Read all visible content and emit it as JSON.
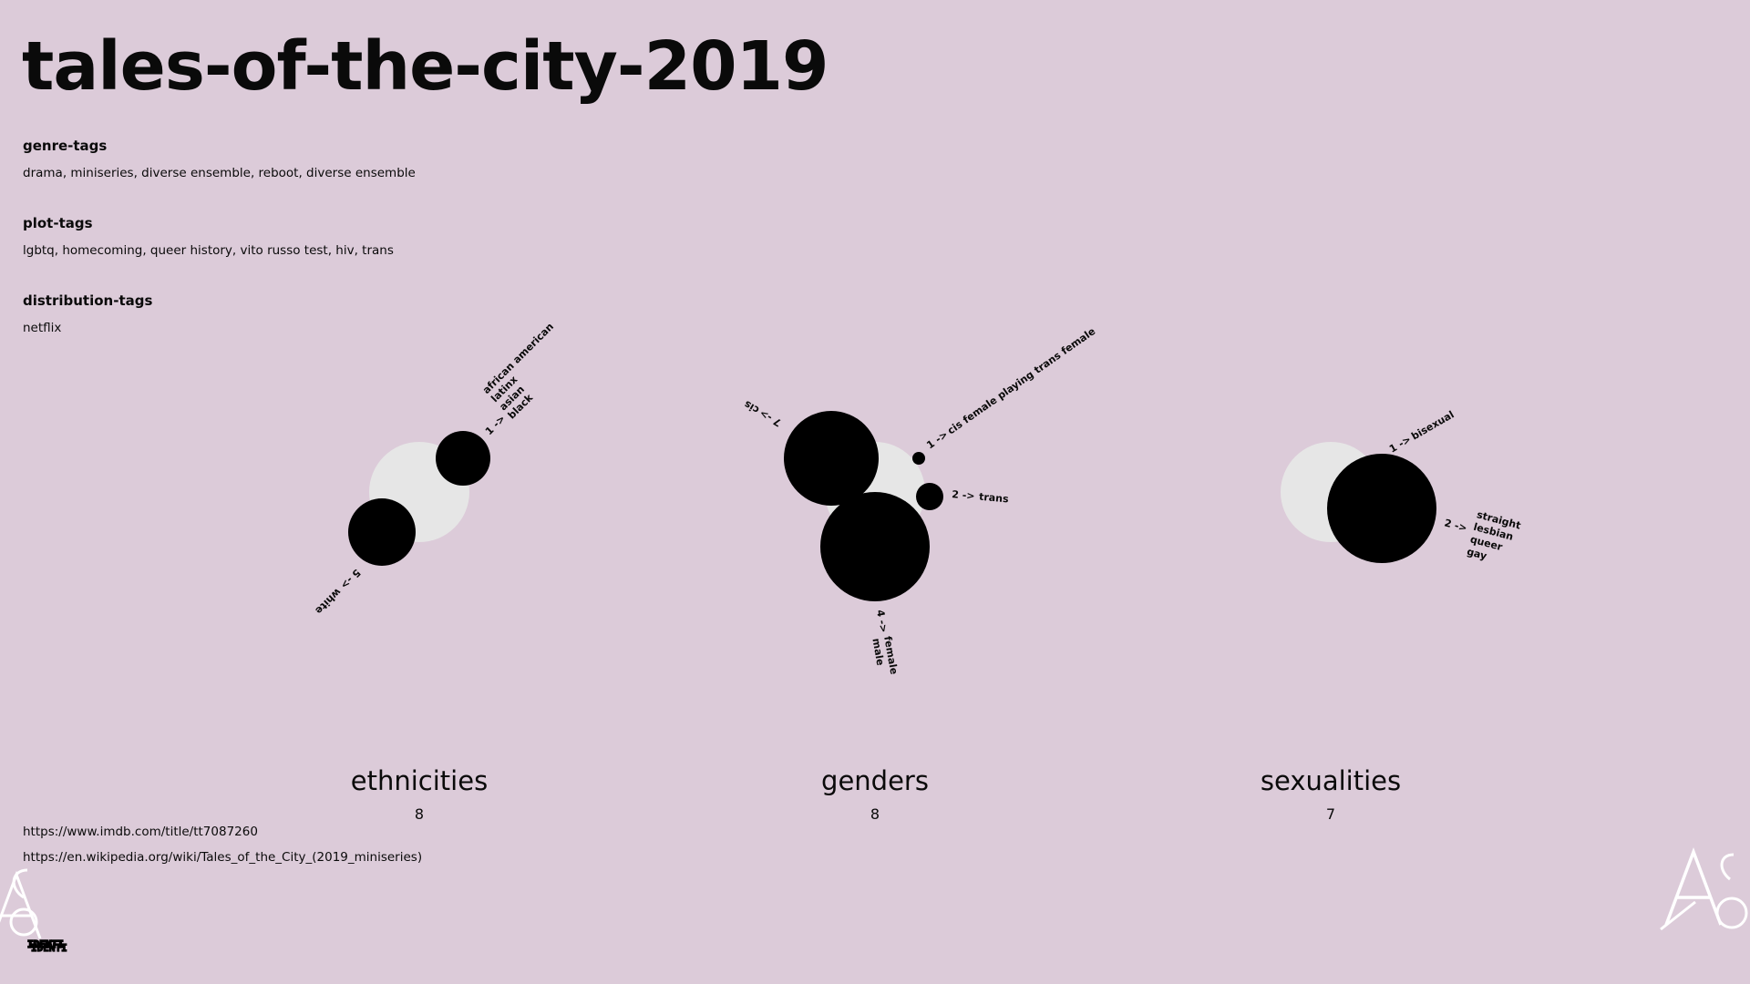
{
  "page": {
    "title": "tales-of-the-city-2019",
    "background": "#dccbd9"
  },
  "tags": {
    "genre": {
      "heading": "genre-tags",
      "text": "drama, miniseries, diverse ensemble, reboot, diverse ensemble"
    },
    "plot": {
      "heading": "plot-tags",
      "text": "lgbtq, homecoming, queer history, vito russo test, hiv, trans"
    },
    "distribution": {
      "heading": "distribution-tags",
      "text": "netflix"
    }
  },
  "links": {
    "imdb": "https://www.imdb.com/title/tt7087260",
    "wikipedia": "https://en.wikipedia.org/wiki/Tales_of_the_City_(2019_miniseries)"
  },
  "categories": {
    "ethnicities": {
      "title": "ethnicities",
      "count": "8",
      "groups": [
        {
          "count": "1 ->",
          "labels": [
            "african american",
            "latinx",
            "asian",
            "black"
          ]
        },
        {
          "count": "5 ->",
          "labels": [
            "white"
          ]
        }
      ]
    },
    "genders": {
      "title": "genders",
      "count": "8",
      "groups": [
        {
          "count": "7 ->",
          "labels": [
            "cis"
          ]
        },
        {
          "count": "1 ->",
          "labels": [
            "cis female playing trans female"
          ]
        },
        {
          "count": "2 ->",
          "labels": [
            "trans"
          ]
        },
        {
          "count": "4 ->",
          "labels": [
            "female",
            "male"
          ]
        }
      ]
    },
    "sexualities": {
      "title": "sexualities",
      "count": "7",
      "groups": [
        {
          "count": "1 ->",
          "labels": [
            "bisexual"
          ]
        },
        {
          "count": "2 ->",
          "labels": [
            "straight",
            "lesbian",
            "queer",
            "gay"
          ]
        }
      ]
    }
  },
  "logo": {
    "text": "IDENTI",
    "icon": "a6-monogram-icon"
  },
  "colors": {
    "dot": "#000000",
    "backdrop_circle": "#e6e6e6",
    "monogram": "#ffffff"
  }
}
